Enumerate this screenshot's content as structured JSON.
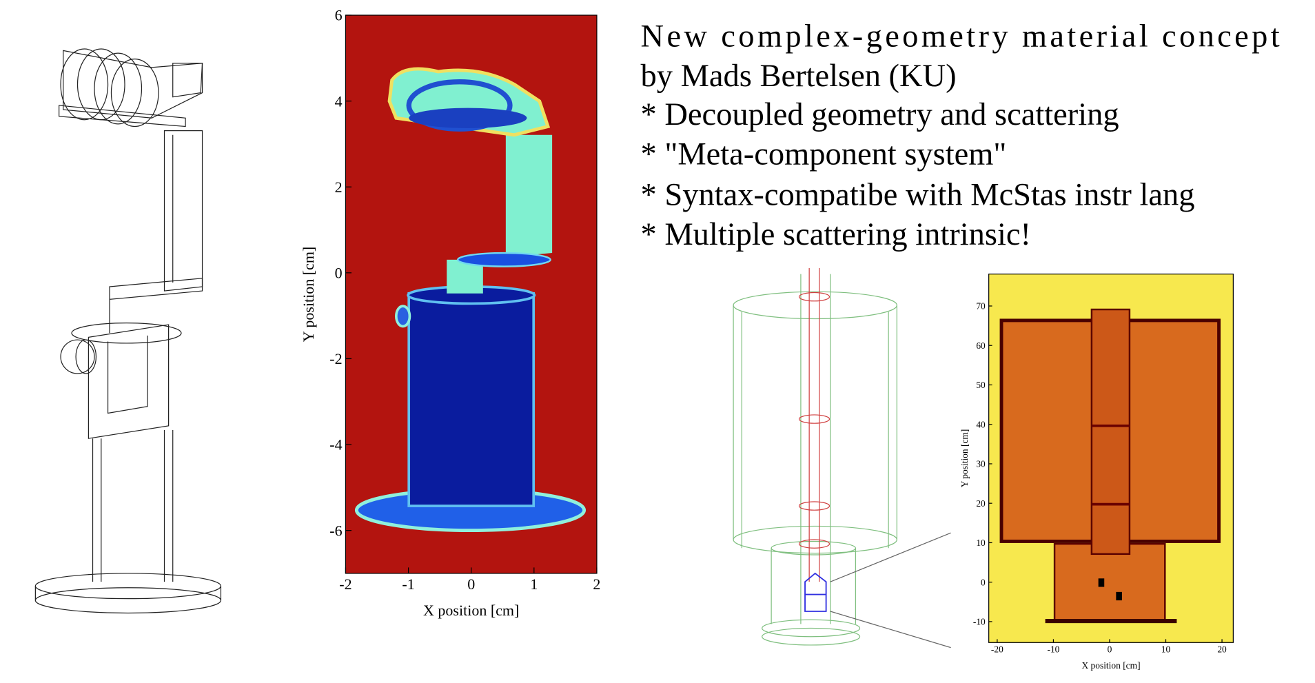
{
  "slide": {
    "title_lines": [
      "New complex-geometry material concept",
      "by Mads Bertelsen (KU)"
    ],
    "bullets": [
      "* Decoupled geometry and scattering",
      "* \"Meta-component system\"",
      "* Syntax-compatibe with McStas instr lang",
      "* Multiple scattering intrinsic!"
    ]
  },
  "plots": [
    {
      "xlabel": "X position [cm]",
      "ylabel": "Y position [cm]",
      "xlim": [
        -2,
        2
      ],
      "ylim": [
        -7,
        6
      ],
      "xticks": [
        -2,
        -1,
        0,
        1,
        2
      ],
      "yticks": [
        -6,
        -4,
        -2,
        0,
        2,
        4,
        6
      ]
    },
    {
      "xlabel": "X position [cm]",
      "ylabel": "Y position [cm]",
      "xlim": [
        -21.5,
        22
      ],
      "ylim": [
        -15.3,
        78.1
      ],
      "xticks": [
        -20,
        -10,
        0,
        10,
        20
      ],
      "yticks": [
        -10,
        0,
        10,
        20,
        30,
        40,
        50,
        60,
        70
      ]
    }
  ]
}
